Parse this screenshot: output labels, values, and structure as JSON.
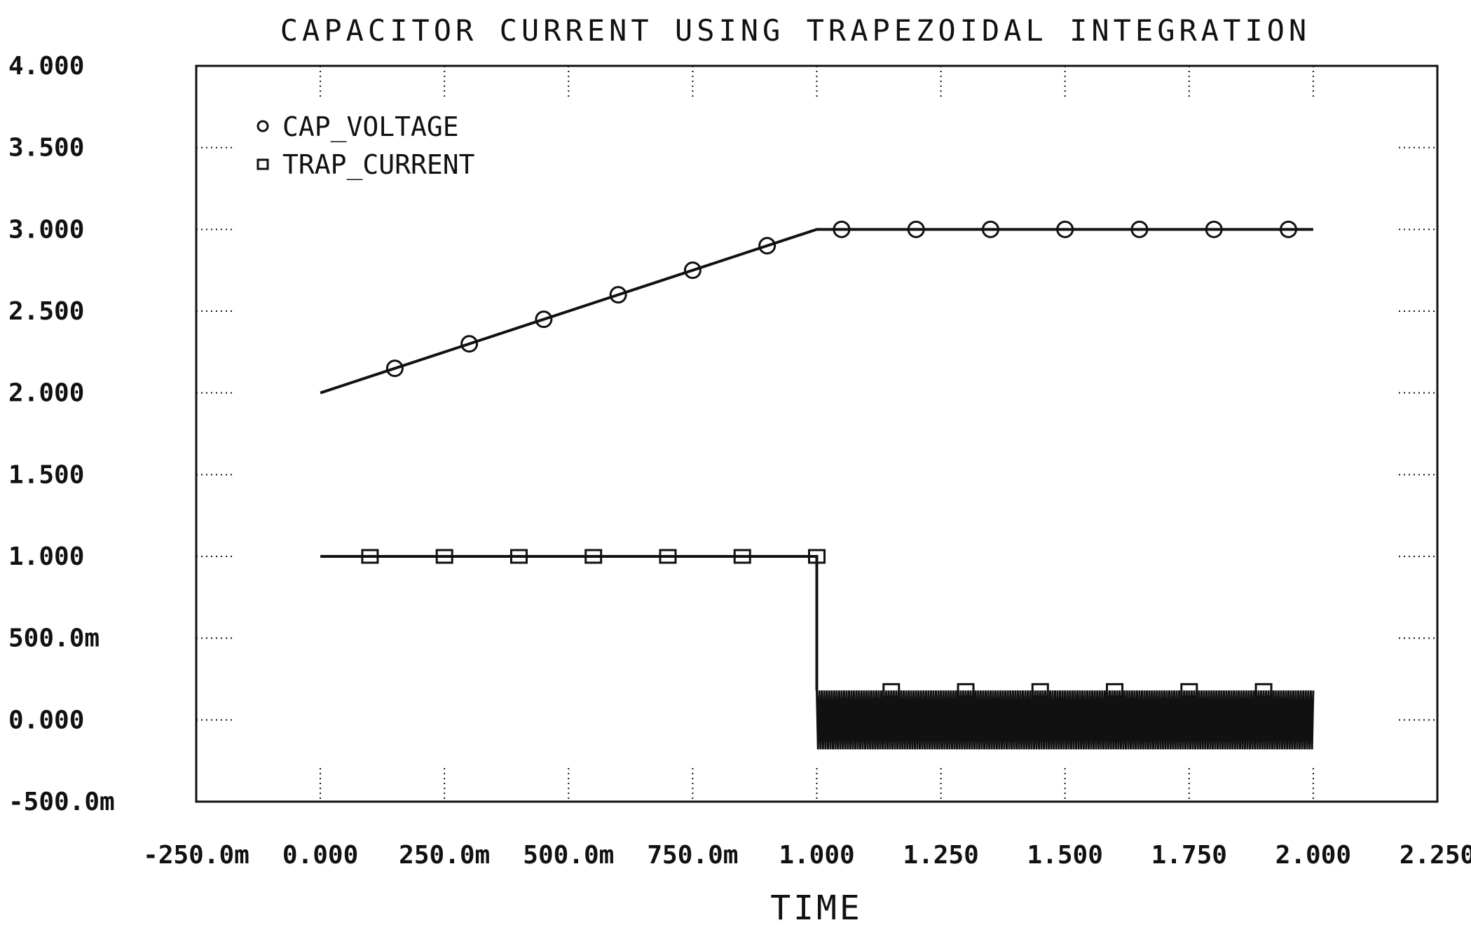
{
  "chart_data": {
    "type": "line",
    "title": "CAPACITOR CURRENT USING TRAPEZOIDAL INTEGRATION",
    "xlabel": "TIME",
    "ylabel": "",
    "xlim": [
      -0.25,
      2.25
    ],
    "ylim": [
      -0.5,
      4.0
    ],
    "x_ticks": [
      -0.25,
      0.0,
      0.25,
      0.5,
      0.75,
      1.0,
      1.25,
      1.5,
      1.75,
      2.0,
      2.25
    ],
    "x_tick_labels": [
      "-250.0m",
      "0.000",
      "250.0m",
      "500.0m",
      "750.0m",
      "1.000",
      "1.250",
      "1.500",
      "1.750",
      "2.000",
      "2.250"
    ],
    "y_ticks": [
      -0.5,
      0.0,
      0.5,
      1.0,
      1.5,
      2.0,
      2.5,
      3.0,
      3.5,
      4.0
    ],
    "y_tick_labels": [
      "-500.0m",
      "0.000",
      "500.0m",
      "1.000",
      "1.500",
      "2.000",
      "2.500",
      "3.000",
      "3.500",
      "4.000"
    ],
    "grid": "dotted tick marks at axis edges",
    "legend_position": "top-left",
    "series": [
      {
        "name": "CAP_VOLTAGE",
        "marker": "circle",
        "x": [
          0.0,
          1.0,
          2.0
        ],
        "y": [
          2.0,
          3.0,
          3.0
        ],
        "marker_x": [
          0.15,
          0.3,
          0.45,
          0.6,
          0.75,
          0.9,
          1.05,
          1.2,
          1.35,
          1.5,
          1.65,
          1.8,
          1.95
        ],
        "marker_y": [
          2.15,
          2.3,
          2.45,
          2.6,
          2.75,
          2.9,
          3.0,
          3.0,
          3.0,
          3.0,
          3.0,
          3.0,
          3.0
        ]
      },
      {
        "name": "TRAP_CURRENT",
        "marker": "square",
        "x": [
          0.0,
          1.0,
          1.0
        ],
        "y": [
          1.0,
          1.0,
          0.18
        ],
        "oscillation": {
          "x_start": 1.0,
          "x_end": 2.0,
          "y_high": 0.18,
          "y_low": -0.18,
          "period": 0.005
        },
        "marker_x": [
          0.1,
          0.25,
          0.4,
          0.55,
          0.7,
          0.85,
          1.0,
          1.15,
          1.3,
          1.45,
          1.6,
          1.75,
          1.9
        ],
        "marker_y": [
          1.0,
          1.0,
          1.0,
          1.0,
          1.0,
          1.0,
          1.0,
          0.18,
          0.18,
          0.18,
          0.18,
          0.18,
          0.18
        ]
      }
    ]
  }
}
